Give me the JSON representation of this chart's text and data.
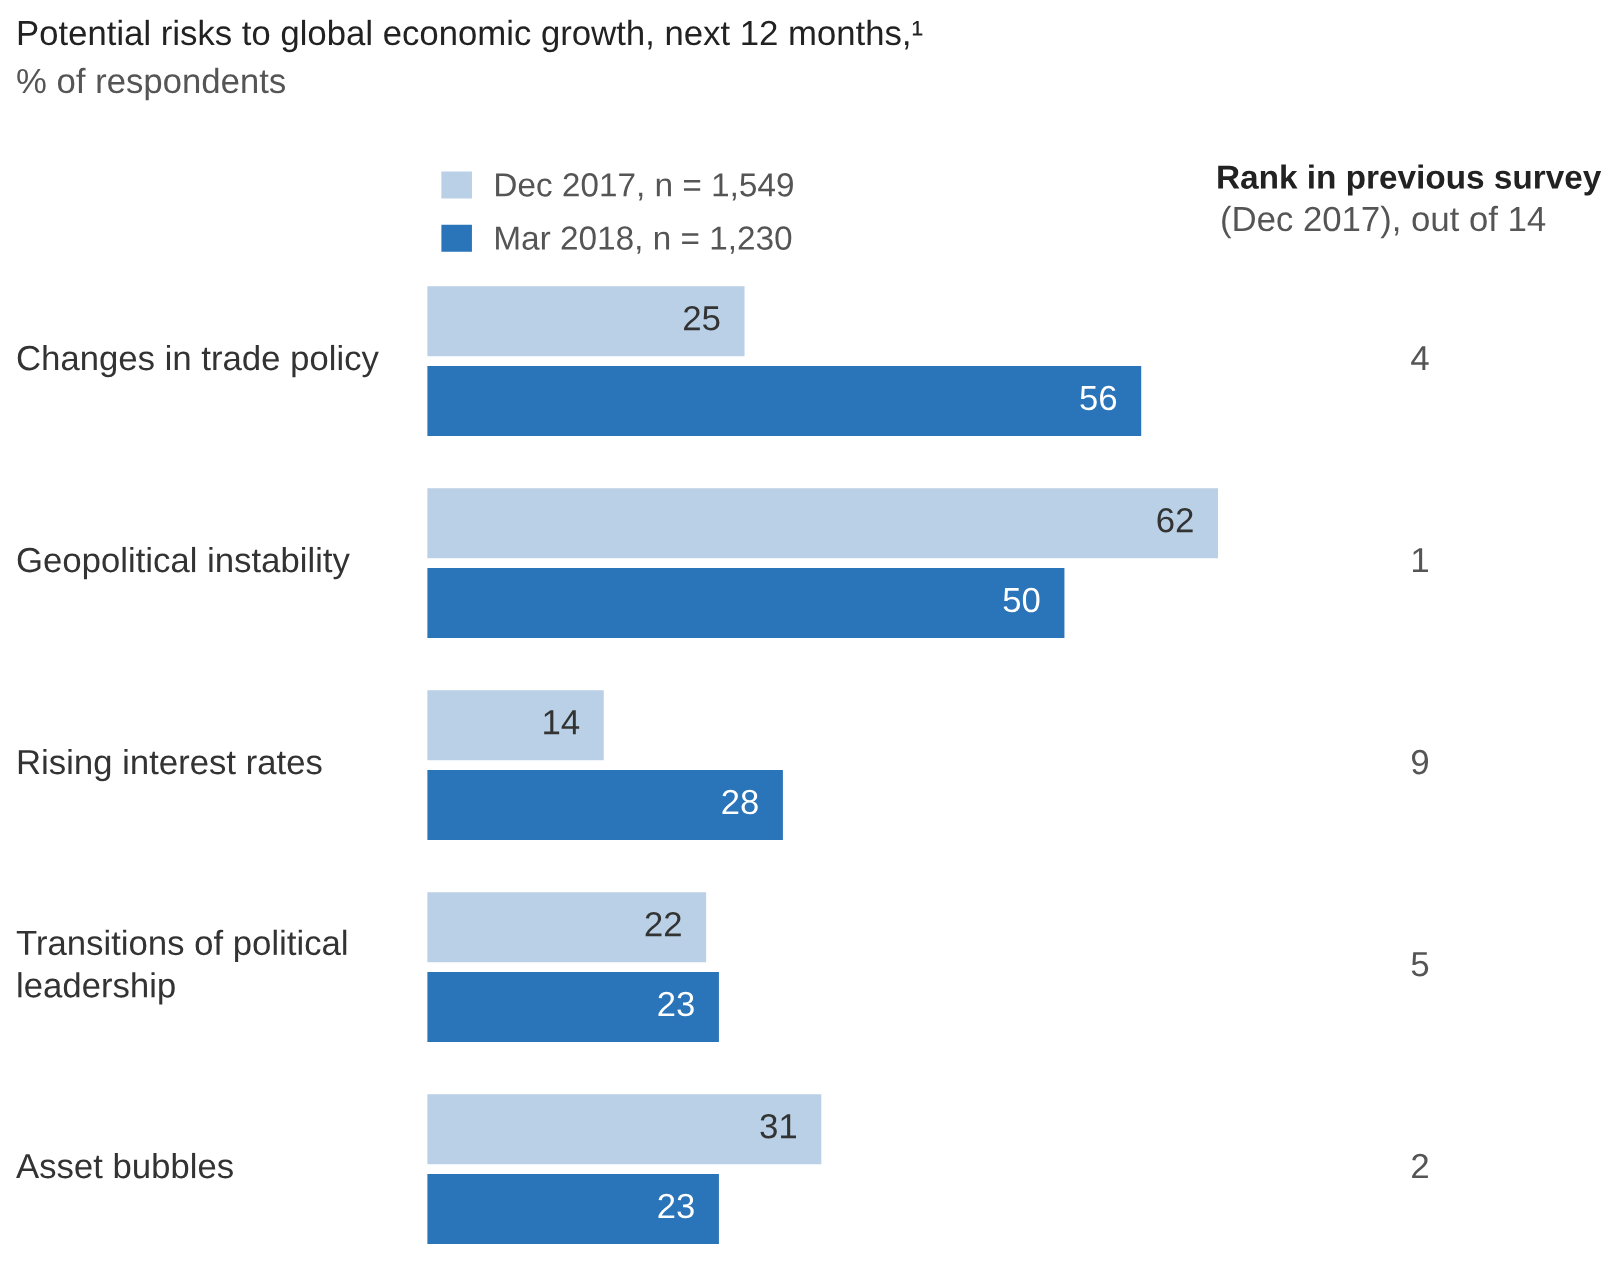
{
  "chart_data": {
    "type": "bar",
    "orientation": "horizontal",
    "data_labels": true,
    "legend": "top left",
    "title": "Potential risks to global economic growth, next 12 months,¹",
    "subtitle": "% of respondents",
    "categories": [
      "Changes in trade policy",
      "Geopolitical instability",
      "Rising interest rates",
      "Transitions of political\nleadership",
      "Asset bubbles"
    ],
    "series": [
      {
        "name": "Dec 2017, n = 1,549",
        "color": "#b9d0e6",
        "values": [
          25,
          62,
          14,
          22,
          31
        ]
      },
      {
        "name": "Mar 2018, n = 1,230",
        "color": "#2a74b9",
        "values": [
          56,
          50,
          28,
          23,
          23
        ]
      }
    ],
    "annotations": [
      "Rank in previous survey",
      "(Dec 2017), out of 14",
      "4",
      "1",
      "9",
      "5",
      "2"
    ]
  }
}
